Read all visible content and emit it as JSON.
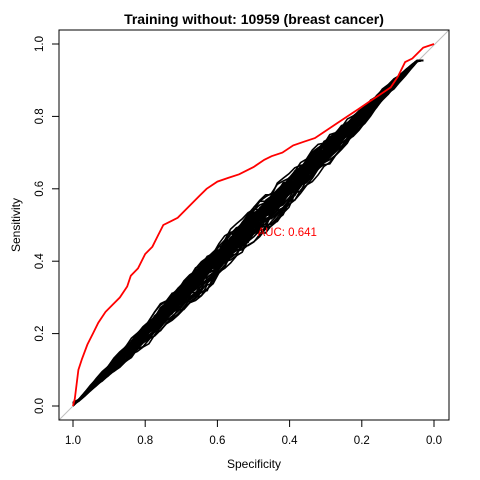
{
  "chart_data": {
    "type": "line",
    "title": "Training without: 10959 (breast cancer)",
    "xlabel": "Specificity",
    "ylabel": "Sensitivity",
    "xlim": [
      1.0,
      0.0
    ],
    "ylim": [
      0.0,
      1.0
    ],
    "x_reversed": true,
    "xticks": [
      1.0,
      0.8,
      0.6,
      0.4,
      0.2,
      0.0
    ],
    "xtick_labels": [
      "1.0",
      "0.8",
      "0.6",
      "0.4",
      "0.2",
      "0.0"
    ],
    "yticks": [
      0.0,
      0.2,
      0.4,
      0.6,
      0.8,
      1.0
    ],
    "ytick_labels": [
      "0.0",
      "0.2",
      "0.4",
      "0.6",
      "0.8",
      "1.0"
    ],
    "grid": false,
    "reference_line": {
      "from": [
        1.0,
        0.0
      ],
      "to": [
        0.0,
        1.0
      ],
      "color": "#bebebe"
    },
    "annotation": {
      "text": "AUC: 0.641",
      "x": 0.5,
      "y": 0.48,
      "color": "#ff0000"
    },
    "highlight_series": {
      "color": "#ff0000",
      "points": [
        [
          1.0,
          0.0
        ],
        [
          0.995,
          0.02
        ],
        [
          0.99,
          0.06
        ],
        [
          0.985,
          0.1
        ],
        [
          0.975,
          0.13
        ],
        [
          0.96,
          0.17
        ],
        [
          0.945,
          0.2
        ],
        [
          0.93,
          0.23
        ],
        [
          0.91,
          0.26
        ],
        [
          0.89,
          0.28
        ],
        [
          0.87,
          0.3
        ],
        [
          0.85,
          0.33
        ],
        [
          0.84,
          0.36
        ],
        [
          0.82,
          0.38
        ],
        [
          0.8,
          0.42
        ],
        [
          0.78,
          0.44
        ],
        [
          0.765,
          0.47
        ],
        [
          0.75,
          0.5
        ],
        [
          0.73,
          0.51
        ],
        [
          0.71,
          0.52
        ],
        [
          0.69,
          0.54
        ],
        [
          0.67,
          0.56
        ],
        [
          0.65,
          0.58
        ],
        [
          0.63,
          0.6
        ],
        [
          0.6,
          0.62
        ],
        [
          0.57,
          0.63
        ],
        [
          0.54,
          0.64
        ],
        [
          0.5,
          0.66
        ],
        [
          0.47,
          0.68
        ],
        [
          0.45,
          0.69
        ],
        [
          0.42,
          0.7
        ],
        [
          0.39,
          0.72
        ],
        [
          0.36,
          0.73
        ],
        [
          0.33,
          0.74
        ],
        [
          0.3,
          0.76
        ],
        [
          0.27,
          0.78
        ],
        [
          0.24,
          0.8
        ],
        [
          0.21,
          0.82
        ],
        [
          0.18,
          0.84
        ],
        [
          0.15,
          0.86
        ],
        [
          0.12,
          0.88
        ],
        [
          0.1,
          0.91
        ],
        [
          0.08,
          0.95
        ],
        [
          0.06,
          0.96
        ],
        [
          0.04,
          0.98
        ],
        [
          0.03,
          0.99
        ],
        [
          0.0,
          1.0
        ]
      ]
    },
    "permutation_series": {
      "color": "#000000",
      "count": 60,
      "x_range": [
        1.0,
        0.03
      ],
      "approx_path": "diagonal"
    }
  }
}
